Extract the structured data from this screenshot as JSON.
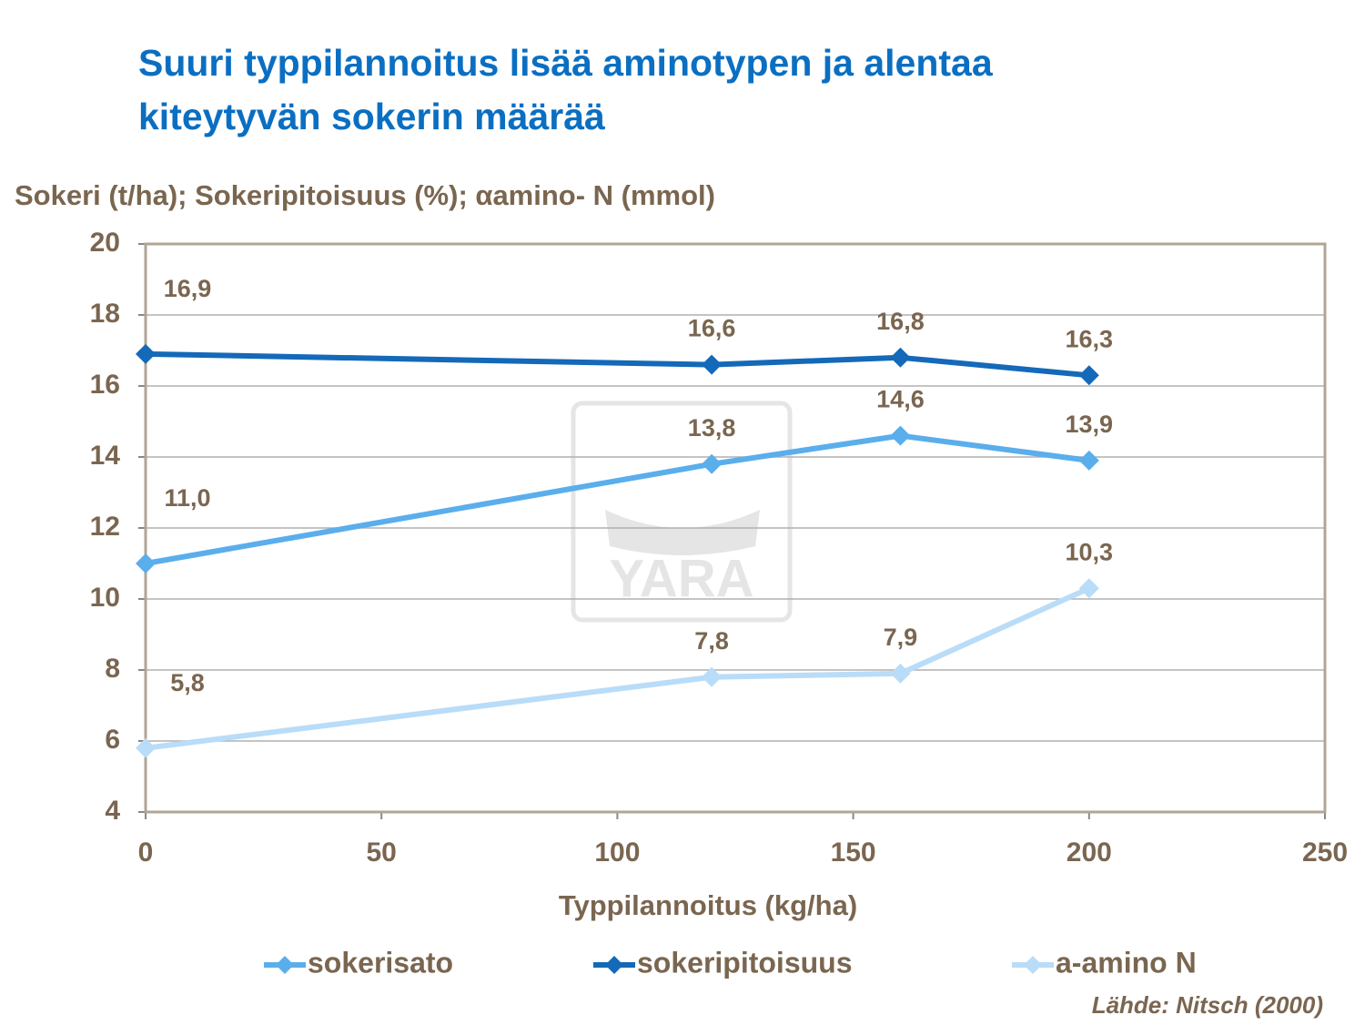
{
  "chart_data": {
    "type": "line",
    "title": [
      "Suuri typpilannoitus lisää aminotypen ja alentaa",
      "kiteytyvän sokerin määrää"
    ],
    "y_label": "Sokeri (t/ha); Sokeripitoisuus (%); αamino- N (mmol)",
    "x_label": "Typpilannoitus (kg/ha)",
    "source": "Lähde: Nitsch (2000)",
    "watermark": "YARA",
    "x": [
      0,
      120,
      160,
      200
    ],
    "series": [
      {
        "name": "sokerisato",
        "color": "#5aaeec",
        "values": [
          11.0,
          13.8,
          14.6,
          13.9
        ],
        "value_labels": [
          "11,0",
          "13,8",
          "14,6",
          "13,9"
        ]
      },
      {
        "name": "sokeripitoisuus",
        "color": "#1469b8",
        "values": [
          16.9,
          16.6,
          16.8,
          16.3
        ],
        "value_labels": [
          "16,9",
          "16,6",
          "16,8",
          "16,3"
        ]
      },
      {
        "name": "a-amino N",
        "color": "#b9dcf8",
        "values": [
          5.8,
          7.8,
          7.9,
          10.3
        ],
        "value_labels": [
          "5,8",
          "7,8",
          "7,9",
          "10,3"
        ]
      }
    ],
    "xlim": [
      0,
      250
    ],
    "xticks": [
      0,
      50,
      100,
      150,
      200,
      250
    ],
    "ylim": [
      4,
      20
    ],
    "yticks": [
      4,
      6,
      8,
      10,
      12,
      14,
      16,
      18,
      20
    ],
    "grid": true,
    "legend": "bottom"
  }
}
